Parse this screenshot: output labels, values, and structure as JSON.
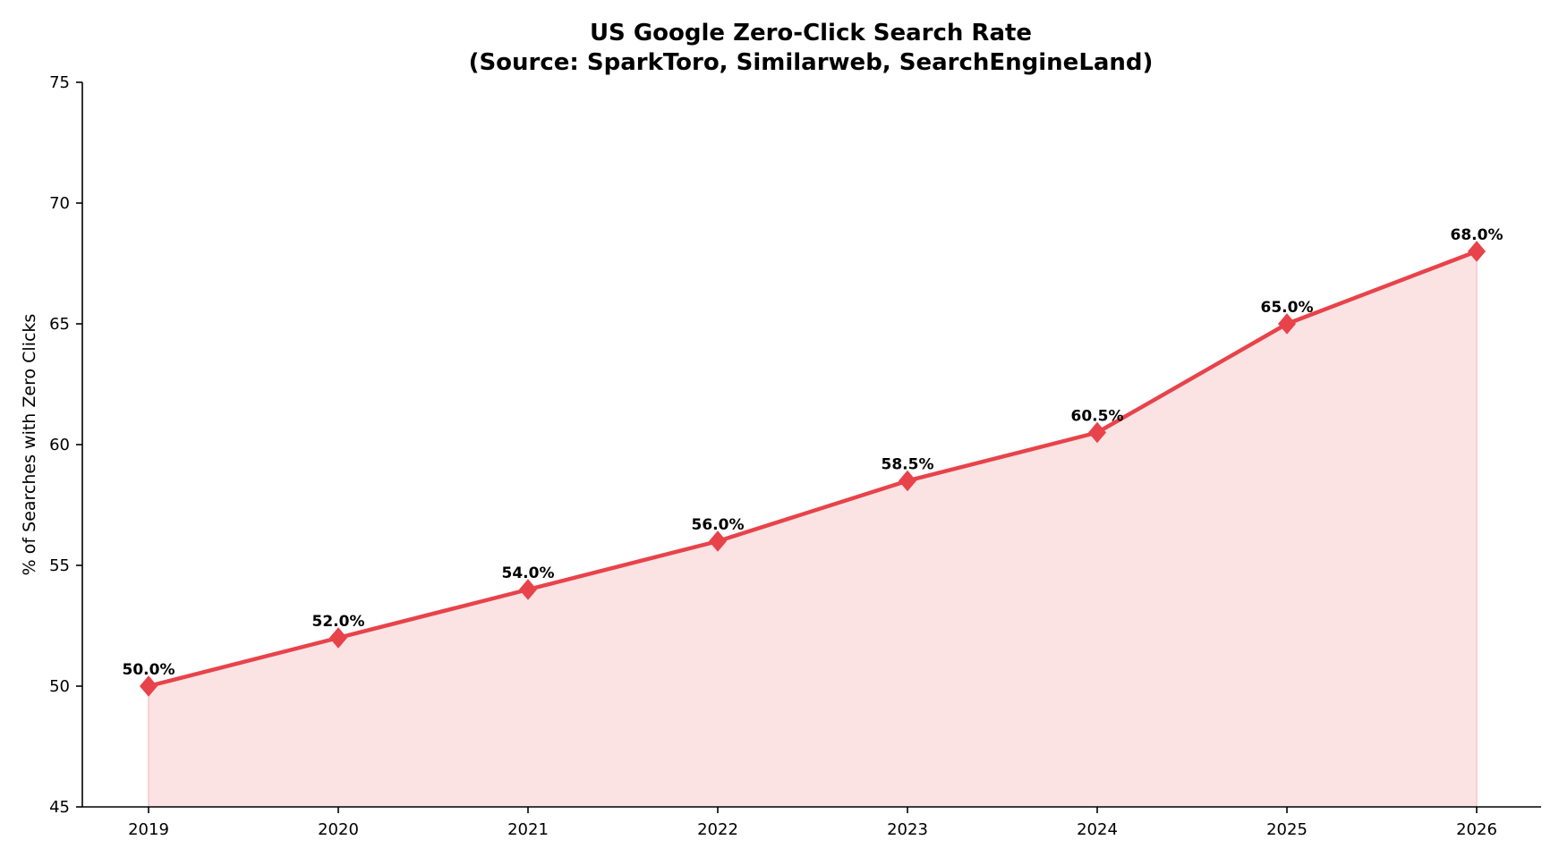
{
  "chart_data": {
    "type": "line",
    "title_line1": "US Google Zero-Click Search Rate",
    "title_line2": "(Source: SparkToro, Similarweb, SearchEngineLand)",
    "xlabel": "",
    "ylabel": "% of Searches with Zero Clicks",
    "x": [
      "2019",
      "2020",
      "2021",
      "2022",
      "2023",
      "2024",
      "2025",
      "2026"
    ],
    "series": [
      {
        "values": [
          50.0,
          52.0,
          54.0,
          56.0,
          58.5,
          60.5,
          65.0,
          68.0
        ],
        "labels": [
          "50.0%",
          "52.0%",
          "54.0%",
          "56.0%",
          "58.5%",
          "60.5%",
          "65.0%",
          "68.0%"
        ],
        "color": "#e8434a",
        "fill_color": "#fbe3e4",
        "marker": "diamond"
      }
    ],
    "ylim": [
      45,
      75
    ],
    "yticks": [
      45,
      50,
      55,
      60,
      65,
      70,
      75
    ],
    "grid": false,
    "legend": "none",
    "area_fill": true
  }
}
